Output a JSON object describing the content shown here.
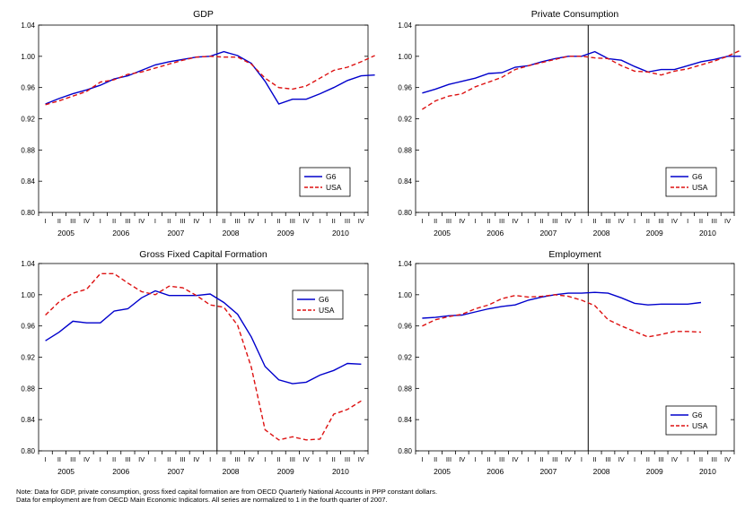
{
  "chart_data": [
    {
      "type": "line",
      "title": "GDP",
      "ylim": [
        0.8,
        1.04
      ],
      "yticks": [
        "0.80",
        "0.84",
        "0.88",
        "0.92",
        "0.96",
        "1.00",
        "1.04"
      ],
      "quarter_labels": [
        "I",
        "II",
        "III",
        "IV",
        "I",
        "II",
        "III",
        "IV",
        "I",
        "II",
        "III",
        "IV",
        "I",
        "II",
        "III",
        "IV",
        "I",
        "II",
        "III",
        "IV",
        "I",
        "II",
        "III",
        "IV"
      ],
      "year_labels": [
        "2005",
        "2006",
        "2007",
        "2008",
        "2009",
        "2010"
      ],
      "vline_after_quarter": 13,
      "legend": {
        "position": "bottom-right",
        "entries": [
          "G6",
          "USA"
        ]
      },
      "series": [
        {
          "name": "G6",
          "color": "#0000cc",
          "dash": "solid",
          "values": [
            0.939,
            0.946,
            0.952,
            0.957,
            0.963,
            0.971,
            0.975,
            0.982,
            0.989,
            0.993,
            0.996,
            0.999,
            1.0,
            1.006,
            1.001,
            0.991,
            0.968,
            0.939,
            0.945,
            0.945,
            0.952,
            0.96,
            0.969,
            0.975,
            0.976
          ]
        },
        {
          "name": "USA",
          "color": "#dd1111",
          "dash": "dashed",
          "values": [
            0.938,
            0.943,
            0.949,
            0.955,
            0.967,
            0.97,
            0.977,
            0.98,
            0.985,
            0.99,
            0.995,
            0.999,
            1.0,
            0.999,
            0.999,
            0.99,
            0.972,
            0.96,
            0.958,
            0.962,
            0.972,
            0.982,
            0.986,
            0.993,
            1.001
          ]
        }
      ]
    },
    {
      "type": "line",
      "title": "Private Consumption",
      "ylim": [
        0.8,
        1.04
      ],
      "yticks": [
        "0.80",
        "0.84",
        "0.88",
        "0.92",
        "0.96",
        "1.00",
        "1.04"
      ],
      "quarter_labels": [
        "I",
        "II",
        "III",
        "IV",
        "I",
        "II",
        "III",
        "IV",
        "I",
        "II",
        "III",
        "IV",
        "I",
        "II",
        "III",
        "IV",
        "I",
        "II",
        "III",
        "IV",
        "I",
        "II",
        "III",
        "IV"
      ],
      "year_labels": [
        "2005",
        "2006",
        "2007",
        "2008",
        "2009",
        "2010"
      ],
      "vline_after_quarter": 13,
      "legend": {
        "position": "bottom-right",
        "entries": [
          "G6",
          "USA"
        ]
      },
      "series": [
        {
          "name": "G6",
          "color": "#0000cc",
          "dash": "solid",
          "values": [
            0.953,
            0.958,
            0.964,
            0.968,
            0.972,
            0.978,
            0.979,
            0.986,
            0.988,
            0.993,
            0.997,
            1.0,
            1.0,
            1.006,
            0.997,
            0.995,
            0.987,
            0.98,
            0.983,
            0.983,
            0.988,
            0.993,
            0.996,
            1.0,
            1.0
          ]
        },
        {
          "name": "USA",
          "color": "#dd1111",
          "dash": "dashed",
          "values": [
            0.932,
            0.943,
            0.949,
            0.952,
            0.961,
            0.967,
            0.973,
            0.983,
            0.988,
            0.992,
            0.996,
            1.0,
            1.0,
            0.998,
            0.997,
            0.988,
            0.981,
            0.98,
            0.976,
            0.981,
            0.984,
            0.989,
            0.994,
            1.0,
            1.008
          ]
        }
      ]
    },
    {
      "type": "line",
      "title": "Gross Fixed Capital Formation",
      "ylim": [
        0.8,
        1.04
      ],
      "yticks": [
        "0.80",
        "0.84",
        "0.88",
        "0.92",
        "0.96",
        "1.00",
        "1.04"
      ],
      "quarter_labels": [
        "I",
        "II",
        "III",
        "IV",
        "I",
        "II",
        "III",
        "IV",
        "I",
        "II",
        "III",
        "IV",
        "I",
        "II",
        "III",
        "IV",
        "I",
        "II",
        "III",
        "IV",
        "I",
        "II",
        "III",
        "IV"
      ],
      "year_labels": [
        "2005",
        "2006",
        "2007",
        "2008",
        "2009",
        "2010"
      ],
      "vline_after_quarter": 13,
      "legend": {
        "position": "top-right",
        "entries": [
          "G6",
          "USA"
        ]
      },
      "series": [
        {
          "name": "G6",
          "color": "#0000cc",
          "dash": "solid",
          "values": [
            0.941,
            0.952,
            0.966,
            0.964,
            0.964,
            0.979,
            0.982,
            0.996,
            1.005,
            0.999,
            0.999,
            0.999,
            1.001,
            0.99,
            0.975,
            0.946,
            0.908,
            0.891,
            0.886,
            0.888,
            0.897,
            0.903,
            0.912,
            0.911
          ]
        },
        {
          "name": "USA",
          "color": "#dd1111",
          "dash": "dashed",
          "values": [
            0.974,
            0.991,
            1.002,
            1.007,
            1.027,
            1.027,
            1.015,
            1.004,
            1.0,
            1.011,
            1.009,
            0.999,
            0.987,
            0.984,
            0.961,
            0.907,
            0.827,
            0.814,
            0.818,
            0.814,
            0.815,
            0.847,
            0.853,
            0.864
          ]
        }
      ]
    },
    {
      "type": "line",
      "title": "Employment",
      "ylim": [
        0.8,
        1.04
      ],
      "yticks": [
        "0.80",
        "0.84",
        "0.88",
        "0.92",
        "0.96",
        "1.00",
        "1.04"
      ],
      "quarter_labels": [
        "I",
        "II",
        "III",
        "IV",
        "I",
        "II",
        "III",
        "IV",
        "I",
        "II",
        "III",
        "IV",
        "I",
        "II",
        "III",
        "IV",
        "I",
        "II",
        "III",
        "IV",
        "I",
        "II",
        "III",
        "IV"
      ],
      "year_labels": [
        "2005",
        "2006",
        "2007",
        "2008",
        "2009",
        "2010"
      ],
      "vline_after_quarter": 13,
      "legend": {
        "position": "bottom-right",
        "entries": [
          "G6",
          "USA"
        ]
      },
      "series": [
        {
          "name": "G6",
          "color": "#0000cc",
          "dash": "solid",
          "values": [
            0.97,
            0.971,
            0.973,
            0.974,
            0.978,
            0.982,
            0.985,
            0.987,
            0.993,
            0.997,
            1.0,
            1.002,
            1.002,
            1.003,
            1.002,
            0.996,
            0.989,
            0.987,
            0.988,
            0.988,
            0.988,
            0.99
          ]
        },
        {
          "name": "USA",
          "color": "#dd1111",
          "dash": "dashed",
          "values": [
            0.96,
            0.968,
            0.972,
            0.975,
            0.982,
            0.987,
            0.995,
            0.999,
            0.997,
            0.998,
            1.0,
            0.998,
            0.993,
            0.986,
            0.968,
            0.96,
            0.953,
            0.946,
            0.949,
            0.953,
            0.953,
            0.952
          ]
        }
      ]
    }
  ],
  "notes": {
    "line1": "Note: Data for GDP, private consumption, gross fixed capital formation are from OECD Quarterly National Accounts in PPP constant dollars.",
    "line2": "Data for employment are from OECD Main Economic Indicators. All series are normalized to 1 in the fourth quarter of 2007."
  }
}
